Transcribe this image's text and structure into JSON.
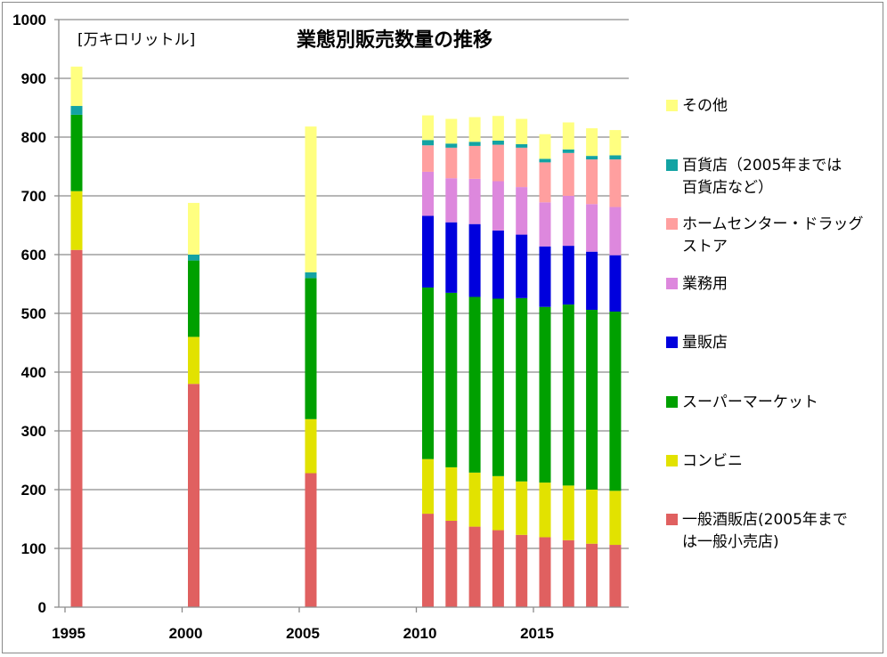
{
  "chart_data": {
    "type": "bar",
    "stacked": true,
    "title": "業態別販売数量の推移",
    "unit_label": "[万キロリットル]",
    "xlabel": "",
    "ylabel": "",
    "ylim": [
      0,
      1000
    ],
    "yticks": [
      0,
      100,
      200,
      300,
      400,
      500,
      600,
      700,
      800,
      900,
      1000
    ],
    "xlim": [
      1995,
      2019
    ],
    "xticks": [
      1995,
      2000,
      2005,
      2010,
      2015
    ],
    "grid": true,
    "legend_position": "right",
    "categories": [
      1995,
      2000,
      2005,
      2010,
      2011,
      2012,
      2013,
      2014,
      2015,
      2016,
      2017,
      2018
    ],
    "series": [
      {
        "name": "一般酒販店(2005年までは一般小売店)",
        "color": "#e06060",
        "values": [
          608,
          380,
          228,
          159,
          147,
          137,
          131,
          123,
          119,
          114,
          108,
          106
        ]
      },
      {
        "name": "コンビニ",
        "color": "#e2e200",
        "values": [
          100,
          80,
          92,
          93,
          91,
          92,
          92,
          91,
          93,
          93,
          92,
          92
        ]
      },
      {
        "name": "スーパーマーケット",
        "color": "#00a000",
        "values": [
          130,
          130,
          240,
          292,
          297,
          299,
          302,
          312,
          299,
          308,
          306,
          305
        ]
      },
      {
        "name": "量販店",
        "color": "#0000dd",
        "values": [
          0,
          0,
          0,
          122,
          120,
          124,
          116,
          108,
          103,
          100,
          99,
          96
        ]
      },
      {
        "name": "業務用",
        "color": "#dd88dd",
        "values": [
          0,
          0,
          0,
          75,
          75,
          77,
          84,
          81,
          75,
          85,
          81,
          82
        ]
      },
      {
        "name": "ホームセンター・ドラッグストア",
        "color": "#ff9f9f",
        "values": [
          0,
          0,
          0,
          45,
          52,
          56,
          62,
          67,
          68,
          73,
          76,
          81
        ]
      },
      {
        "name": "百貨店（2005年までは百貨店など）",
        "color": "#13a3a3",
        "values": [
          15,
          10,
          10,
          9,
          7,
          7,
          7,
          6,
          6,
          6,
          6,
          7
        ]
      },
      {
        "name": "その他",
        "color": "#ffff80",
        "values": [
          67,
          88,
          248,
          42,
          42,
          42,
          42,
          43,
          42,
          46,
          47,
          43
        ]
      }
    ]
  },
  "legend": [
    {
      "label": "その他",
      "color": "#ffff80"
    },
    {
      "label": "百貨店（2005年までは\n百貨店など）",
      "color": "#13a3a3"
    },
    {
      "label": "ホームセンター・ドラッグ\nストア",
      "color": "#ff9f9f"
    },
    {
      "label": "業務用",
      "color": "#dd88dd"
    },
    {
      "label": "量販店",
      "color": "#0000dd"
    },
    {
      "label": "スーパーマーケット",
      "color": "#00a000"
    },
    {
      "label": "コンビニ",
      "color": "#e2e200"
    },
    {
      "label": "一般酒販店(2005年まで\nは一般小売店)",
      "color": "#e06060"
    }
  ]
}
